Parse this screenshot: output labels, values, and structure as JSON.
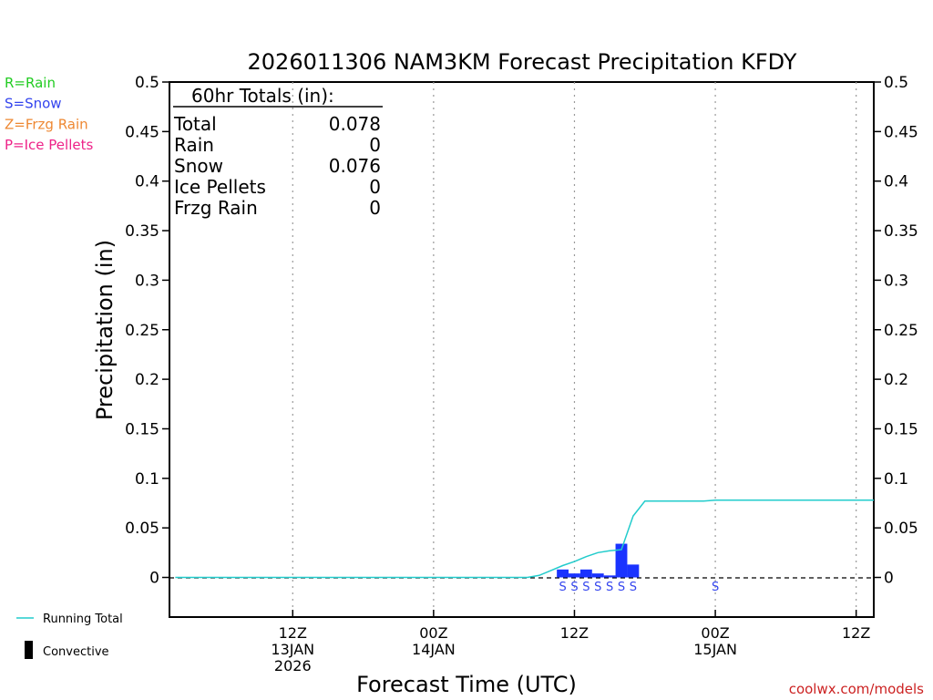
{
  "chart_data": {
    "type": "bar",
    "title": "2026011306 NAM3KM Forecast Precipitation KFDY",
    "xlabel": "Forecast Time (UTC)",
    "ylabel": "Precipitation (in)",
    "ylim": [
      -0.04,
      0.5
    ],
    "xlim_hours": [
      -4.5,
      55.5
    ],
    "yticks": [
      "0",
      "0.05",
      "0.1",
      "0.15",
      "0.2",
      "0.25",
      "0.3",
      "0.35",
      "0.4",
      "0.45",
      "0.5"
    ],
    "ytick_values": [
      0,
      0.05,
      0.1,
      0.15,
      0.2,
      0.25,
      0.3,
      0.35,
      0.4,
      0.45,
      0.5
    ],
    "xticks": [
      {
        "hour": 6,
        "lines": [
          "12Z",
          "13JAN",
          "2026"
        ]
      },
      {
        "hour": 18,
        "lines": [
          "00Z",
          "14JAN"
        ]
      },
      {
        "hour": 30,
        "lines": [
          "12Z"
        ]
      },
      {
        "hour": 42,
        "lines": [
          "00Z",
          "15JAN"
        ]
      },
      {
        "hour": 54,
        "lines": [
          "12Z"
        ]
      }
    ],
    "grid": "vertical dotted",
    "totals_box": {
      "heading": "60hr Totals (in):",
      "rows": [
        {
          "label": "Total",
          "value": "0.078"
        },
        {
          "label": "Rain",
          "value": "0"
        },
        {
          "label": "Snow",
          "value": "0.076"
        },
        {
          "label": "Ice Pellets",
          "value": "0"
        },
        {
          "label": "Frzg Rain",
          "value": "0"
        }
      ]
    },
    "precip_type_legend": [
      {
        "text": "R=Rain",
        "color": "#22cc22"
      },
      {
        "text": "S=Snow",
        "color": "#3344ee"
      },
      {
        "text": "Z=Frzg Rain",
        "color": "#ee8833"
      },
      {
        "text": "P=Ice Pellets",
        "color": "#ee2288"
      }
    ],
    "series": [
      {
        "name": "Snow (hourly)",
        "color": "#1a33ff",
        "x_hours": [
          29,
          30,
          31,
          32,
          33,
          34,
          35
        ],
        "values": [
          0.008,
          0.004,
          0.008,
          0.004,
          0.002,
          0.034,
          0.013
        ]
      },
      {
        "name": "Running Total",
        "color": "#22cccc",
        "x_hours": [
          -4,
          26,
          27,
          28,
          29,
          30,
          31,
          32,
          33,
          34,
          35,
          36,
          37,
          38,
          39,
          40,
          41,
          42,
          43,
          55.5
        ],
        "values": [
          0,
          0,
          0.002,
          0.007,
          0.012,
          0.016,
          0.021,
          0.025,
          0.027,
          0.028,
          0.062,
          0.077,
          0.077,
          0.077,
          0.077,
          0.077,
          0.077,
          0.078,
          0.078,
          0.078
        ]
      }
    ],
    "type_markers": {
      "letter": "S",
      "color": "#3344ee",
      "x_hours": [
        29,
        30,
        31,
        32,
        33,
        34,
        35,
        42
      ]
    },
    "bottom_legend": [
      {
        "text": "Running Total",
        "color": "#22cccc"
      },
      {
        "text": "Convective",
        "color": "#000000"
      }
    ],
    "credit": "coolwx.com/models",
    "credit_color": "#cc2222"
  }
}
